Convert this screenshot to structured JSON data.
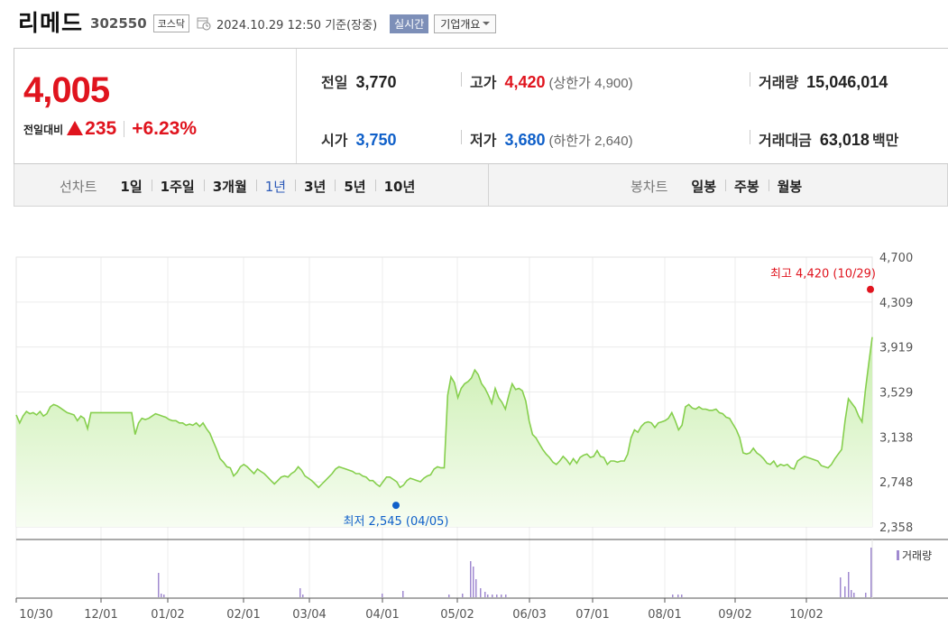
{
  "header": {
    "name": "리메드",
    "code": "302550",
    "market": "코스닥",
    "datetime": "2024.10.29 12:50",
    "basis": "기준(장중)",
    "realtime": "실시간",
    "corp_overview": "기업개요"
  },
  "quote": {
    "price": "4,005",
    "change_label": "전일대비",
    "change": "235",
    "change_pct": "+6.23%",
    "prev_close": {
      "label": "전일",
      "value": "3,770"
    },
    "open": {
      "label": "시가",
      "value": "3,750"
    },
    "high": {
      "label": "고가",
      "value": "4,420",
      "limit_label": "상한가",
      "limit": "4,900"
    },
    "low": {
      "label": "저가",
      "value": "3,680",
      "limit_label": "하한가",
      "limit": "2,640"
    },
    "volume": {
      "label": "거래량",
      "value": "15,046,014"
    },
    "trade_value": {
      "label": "거래대금",
      "value": "63,018",
      "unit": "백만"
    }
  },
  "periods": {
    "line_label": "선차트",
    "line_items": [
      "1일",
      "1주일",
      "3개월",
      "1년",
      "3년",
      "5년",
      "10년"
    ],
    "selected": "1년",
    "candle_label": "봉차트",
    "candle_items": [
      "일봉",
      "주봉",
      "월봉"
    ]
  },
  "colors": {
    "up": "#e0141e",
    "down": "#1060c9",
    "line": "#86cf4d",
    "volume": "#a08ad0"
  },
  "chart_data": {
    "type": "area",
    "y_ticks": [
      "4,700",
      "4,309",
      "3,919",
      "3,529",
      "3,138",
      "2,748",
      "2,358"
    ],
    "ylim": [
      2358,
      4700
    ],
    "x_ticks": [
      "10/30",
      "12/01",
      "01/02",
      "02/01",
      "03/04",
      "04/01",
      "05/02",
      "06/03",
      "07/01",
      "08/01",
      "09/02",
      "10/02"
    ],
    "max_annotation": {
      "label": "최고",
      "value": "4,420",
      "date": "(10/29)",
      "y": 4420
    },
    "min_annotation": {
      "label": "최저",
      "value": "2,545",
      "date": "(04/05)",
      "y": 2545
    },
    "volume_label": "거래량",
    "values": [
      3330,
      3260,
      3320,
      3360,
      3340,
      3350,
      3330,
      3360,
      3320,
      3340,
      3400,
      3420,
      3410,
      3390,
      3370,
      3350,
      3340,
      3330,
      3280,
      3320,
      3300,
      3210,
      3350,
      3350,
      3350,
      3350,
      3350,
      3350,
      3350,
      3350,
      3350,
      3350,
      3350,
      3350,
      3350,
      3160,
      3260,
      3300,
      3290,
      3300,
      3320,
      3340,
      3330,
      3320,
      3310,
      3290,
      3280,
      3280,
      3260,
      3260,
      3240,
      3250,
      3240,
      3260,
      3230,
      3260,
      3210,
      3170,
      3100,
      3030,
      2950,
      2920,
      2880,
      2870,
      2800,
      2830,
      2880,
      2900,
      2880,
      2850,
      2820,
      2860,
      2840,
      2820,
      2790,
      2760,
      2730,
      2760,
      2790,
      2800,
      2790,
      2820,
      2840,
      2880,
      2850,
      2800,
      2780,
      2760,
      2730,
      2700,
      2730,
      2760,
      2790,
      2820,
      2860,
      2880,
      2870,
      2860,
      2850,
      2840,
      2820,
      2820,
      2800,
      2790,
      2760,
      2760,
      2730,
      2710,
      2750,
      2790,
      2790,
      2770,
      2750,
      2700,
      2720,
      2760,
      2780,
      2770,
      2760,
      2750,
      2780,
      2800,
      2810,
      2860,
      2880,
      2870,
      2870,
      3500,
      3660,
      3610,
      3480,
      3560,
      3600,
      3620,
      3650,
      3720,
      3680,
      3600,
      3560,
      3500,
      3430,
      3560,
      3480,
      3440,
      3380,
      3500,
      3600,
      3550,
      3560,
      3540,
      3450,
      3280,
      3160,
      3130,
      3080,
      3030,
      2990,
      2960,
      2920,
      2900,
      2930,
      2970,
      2940,
      2900,
      2950,
      2910,
      2960,
      2980,
      2990,
      2960,
      2970,
      3020,
      2970,
      2960,
      2900,
      2930,
      2930,
      2920,
      2930,
      2930,
      2990,
      3130,
      3200,
      3180,
      3230,
      3260,
      3270,
      3260,
      3220,
      3260,
      3270,
      3280,
      3300,
      3350,
      3280,
      3200,
      3240,
      3400,
      3420,
      3390,
      3380,
      3400,
      3380,
      3380,
      3370,
      3370,
      3380,
      3350,
      3340,
      3310,
      3300,
      3250,
      3200,
      3130,
      3000,
      2990,
      3000,
      3040,
      3000,
      2980,
      2950,
      2910,
      2900,
      2930,
      2880,
      2900,
      2890,
      2900,
      2870,
      2860,
      2930,
      2950,
      2970,
      2960,
      2950,
      2940,
      2930,
      2890,
      2880,
      2870,
      2900,
      2950,
      2990,
      3030,
      3280,
      3470,
      3430,
      3390,
      3320,
      3270,
      3550,
      3780,
      4005
    ]
  }
}
